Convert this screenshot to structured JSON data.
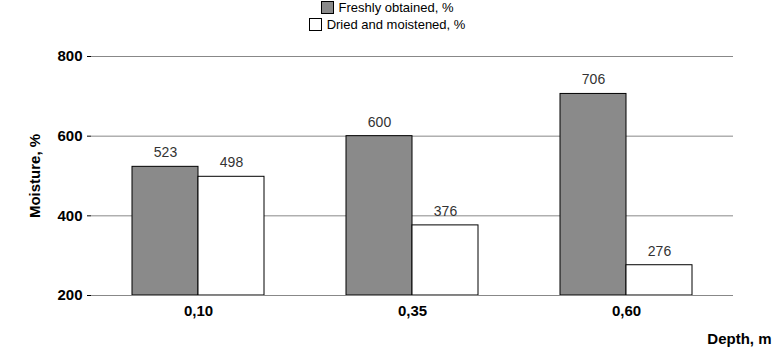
{
  "chart_data": {
    "type": "bar",
    "categories": [
      "0,10",
      "0,35",
      "0,60"
    ],
    "series": [
      {
        "name": "Freshly obtained, %",
        "color": "#8a8a8a",
        "values": [
          523,
          600,
          706
        ]
      },
      {
        "name": "Dried and moistened, %",
        "color": "#ffffff",
        "values": [
          498,
          376,
          276
        ]
      }
    ],
    "x_label": "Depth, m",
    "y_label": "Moisture, %",
    "ylim": [
      200,
      800
    ],
    "yticks": [
      200,
      400,
      600,
      800
    ],
    "grid": true,
    "legend": "top",
    "data_labels": true
  }
}
